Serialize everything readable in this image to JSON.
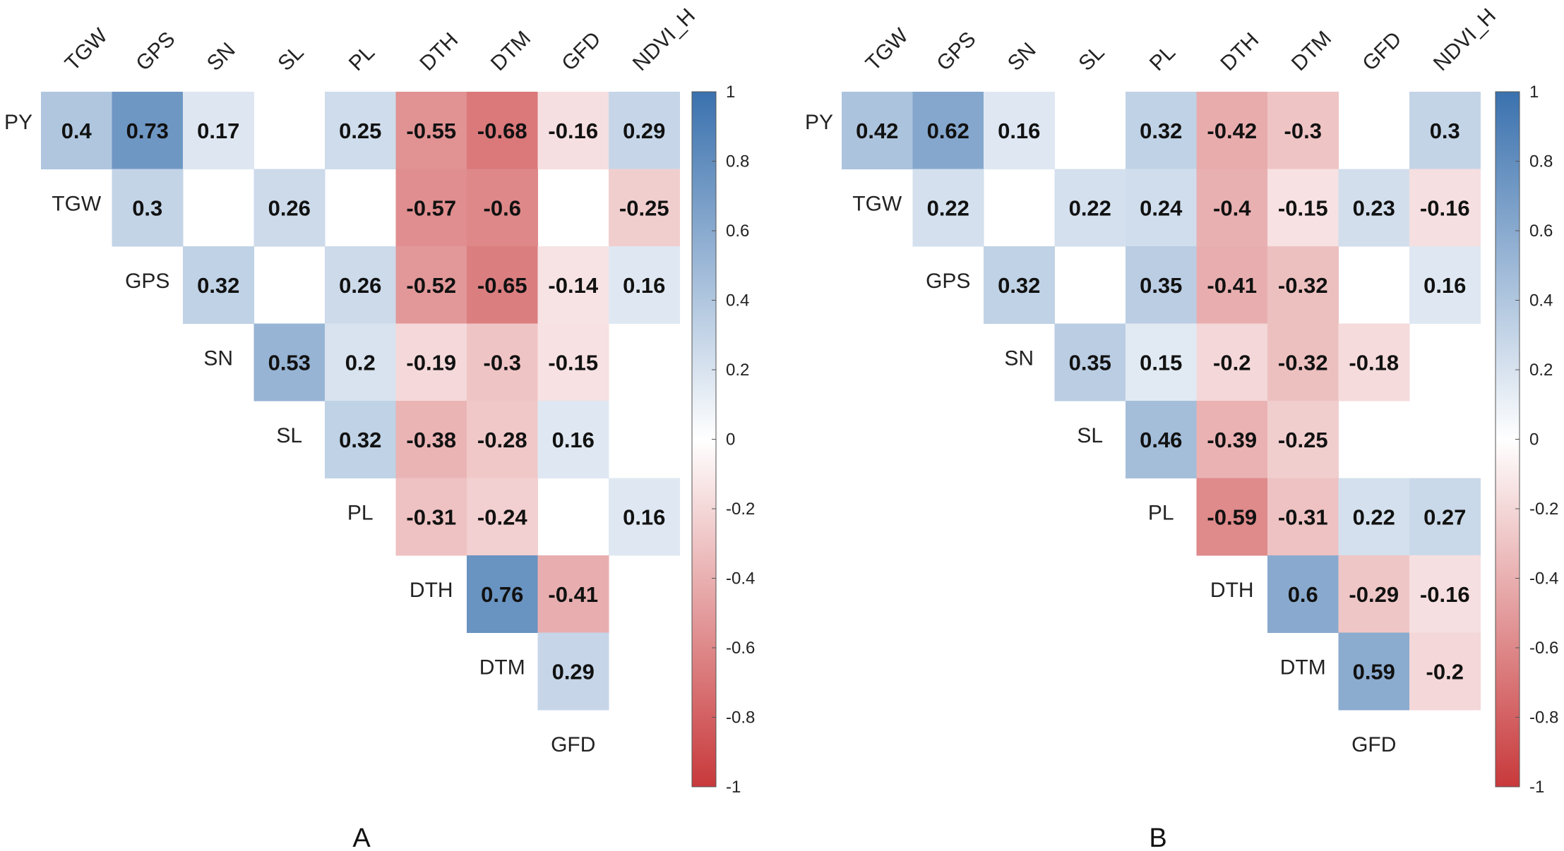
{
  "chart_data": [
    {
      "type": "heatmap",
      "panel_label": "A",
      "columns": [
        "TGW",
        "GPS",
        "SN",
        "SL",
        "PL",
        "DTH",
        "DTM",
        "GFD",
        "NDVI_H"
      ],
      "rows": [
        "PY",
        "TGW",
        "GPS",
        "SN",
        "SL",
        "PL",
        "DTH",
        "DTM",
        "GFD"
      ],
      "values": [
        [
          0.4,
          0.73,
          0.17,
          null,
          0.25,
          -0.55,
          -0.68,
          -0.16,
          0.29
        ],
        [
          null,
          0.3,
          null,
          0.26,
          null,
          -0.57,
          -0.6,
          null,
          -0.25
        ],
        [
          null,
          null,
          0.32,
          null,
          0.26,
          -0.52,
          -0.65,
          -0.14,
          0.16
        ],
        [
          null,
          null,
          null,
          0.53,
          0.2,
          -0.19,
          -0.3,
          -0.15,
          null
        ],
        [
          null,
          null,
          null,
          null,
          0.32,
          -0.38,
          -0.28,
          0.16,
          null
        ],
        [
          null,
          null,
          null,
          null,
          null,
          -0.31,
          -0.24,
          null,
          0.16
        ],
        [
          null,
          null,
          null,
          null,
          null,
          null,
          0.76,
          -0.41,
          null
        ],
        [
          null,
          null,
          null,
          null,
          null,
          null,
          null,
          0.29,
          null
        ],
        [
          null,
          null,
          null,
          null,
          null,
          null,
          null,
          null,
          null
        ]
      ],
      "colorbar": {
        "range": [
          -1,
          1
        ],
        "ticks": [
          "1",
          "0.8",
          "0.6",
          "0.4",
          "0.2",
          "0",
          "-0.2",
          "-0.4",
          "-0.6",
          "-0.8",
          "-1"
        ],
        "low_color": "#c8393b",
        "mid_color": "#ffffff",
        "high_color": "#3a71ae"
      }
    },
    {
      "type": "heatmap",
      "panel_label": "B",
      "columns": [
        "TGW",
        "GPS",
        "SN",
        "SL",
        "PL",
        "DTH",
        "DTM",
        "GFD",
        "NDVI_H"
      ],
      "rows": [
        "PY",
        "TGW",
        "GPS",
        "SN",
        "SL",
        "PL",
        "DTH",
        "DTM",
        "GFD"
      ],
      "values": [
        [
          0.42,
          0.62,
          0.16,
          null,
          0.32,
          -0.42,
          -0.3,
          null,
          0.3
        ],
        [
          null,
          0.22,
          null,
          0.22,
          0.24,
          -0.4,
          -0.15,
          0.23,
          -0.16
        ],
        [
          null,
          null,
          0.32,
          null,
          0.35,
          -0.41,
          -0.32,
          null,
          0.16
        ],
        [
          null,
          null,
          null,
          0.35,
          0.15,
          -0.2,
          -0.32,
          -0.18,
          null
        ],
        [
          null,
          null,
          null,
          null,
          0.46,
          -0.39,
          -0.25,
          null,
          null
        ],
        [
          null,
          null,
          null,
          null,
          null,
          -0.59,
          -0.31,
          0.22,
          0.27
        ],
        [
          null,
          null,
          null,
          null,
          null,
          null,
          0.6,
          -0.29,
          -0.16
        ],
        [
          null,
          null,
          null,
          null,
          null,
          null,
          null,
          0.59,
          -0.2
        ],
        [
          null,
          null,
          null,
          null,
          null,
          null,
          null,
          null,
          null
        ]
      ],
      "colorbar": {
        "range": [
          -1,
          1
        ],
        "ticks": [
          "1",
          "0.8",
          "0.6",
          "0.4",
          "0.2",
          "0",
          "-0.2",
          "-0.4",
          "-0.6",
          "-0.8",
          "-1"
        ],
        "low_color": "#c8393b",
        "mid_color": "#ffffff",
        "high_color": "#3a71ae"
      }
    }
  ]
}
